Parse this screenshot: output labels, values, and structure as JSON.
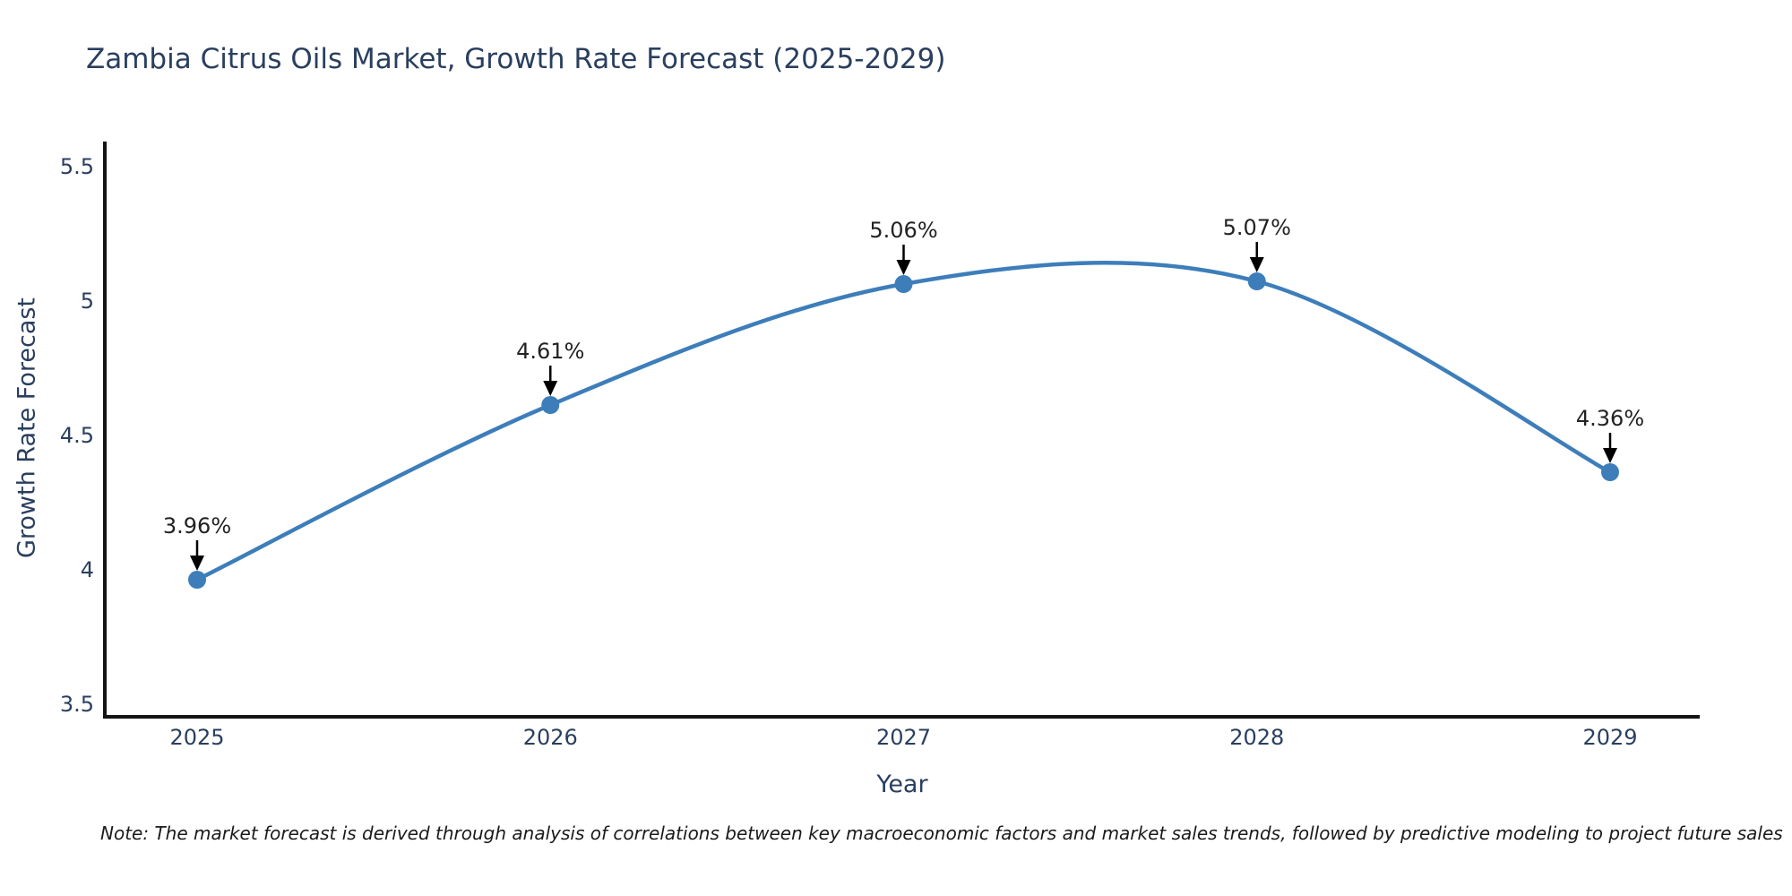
{
  "note": "Note: The market forecast is derived through analysis of correlations between key macroeconomic factors and market sales trends, followed by predictive modeling to project future sales",
  "chart_data": {
    "type": "line",
    "title": "Zambia Citrus Oils Market, Growth Rate Forecast (2025-2029)",
    "xlabel": "Year",
    "ylabel": "Growth Rate Forecast",
    "x": [
      "2025",
      "2026",
      "2027",
      "2028",
      "2029"
    ],
    "series": [
      {
        "name": "Growth Rate Forecast",
        "values": [
          3.96,
          4.61,
          5.06,
          5.07,
          4.36
        ],
        "point_labels": [
          "3.96%",
          "4.61%",
          "5.06%",
          "5.07%",
          "4.36%"
        ]
      }
    ],
    "ylim": [
      3.45,
      5.59
    ],
    "yticks": [
      3.5,
      4,
      4.5,
      5,
      5.5
    ],
    "ytick_labels": [
      "3.5",
      "4",
      "4.5",
      "5",
      "5.5"
    ],
    "grid": false,
    "legend_position": "none",
    "line_style": "smooth-spline",
    "annotations_style": "value label with down arrow onto each marker",
    "colors": {
      "line": "#3d7eba",
      "marker": "#3d7eba",
      "axis": "#141414",
      "tick_text": "#2a3f5f",
      "annotation_text": "#222222",
      "arrow": "#000000",
      "background": "#ffffff"
    }
  }
}
